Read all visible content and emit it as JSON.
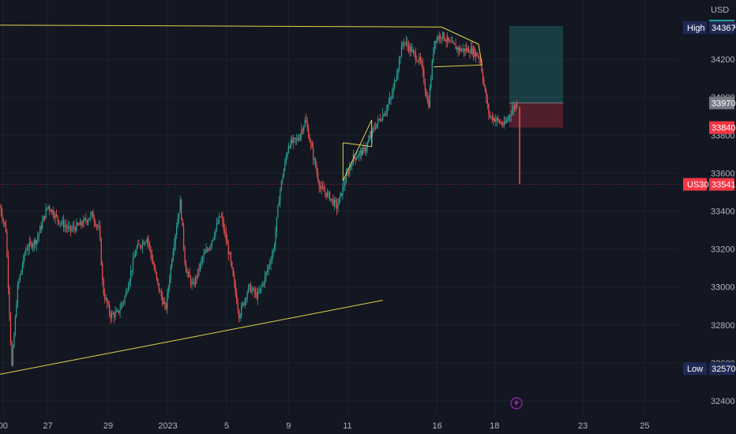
{
  "chart_data": {
    "type": "candlestick",
    "symbol": "US30",
    "currency": "USD",
    "x_ticks": [
      "00",
      "27",
      "29",
      "2023",
      "5",
      "9",
      "11",
      "16",
      "18",
      "23",
      "25"
    ],
    "y_ticks": [
      32400,
      32600,
      32800,
      33000,
      33200,
      33400,
      33600,
      33800,
      34000,
      34200
    ],
    "ylim": [
      32350,
      34450
    ],
    "grid": true,
    "price_tags": [
      {
        "label": "",
        "value": "34375",
        "price": 34375,
        "color": "#26a69a"
      },
      {
        "label": "High",
        "value": "34367",
        "price": 34367,
        "color": "#1e2a55"
      },
      {
        "label": "",
        "value": "33970",
        "price": 33970,
        "color": "#787b86"
      },
      {
        "label": "",
        "value": "33840",
        "price": 33840,
        "color": "#f23645"
      },
      {
        "label": "US30",
        "value": "33541",
        "price": 33541,
        "color": "#f23645"
      },
      {
        "label": "Low",
        "value": "32570",
        "price": 32570,
        "color": "#1e2a55"
      }
    ],
    "position": {
      "entry": 33970,
      "take_profit": 34375,
      "stop_loss": 33840
    },
    "trendlines": [
      {
        "p1": [
          0,
          34380
        ],
        "p2": [
          0.6,
          34370
        ]
      },
      {
        "p1": [
          0,
          32540
        ],
        "p2": [
          0.52,
          32930
        ]
      }
    ],
    "price_path": [
      [
        0.0,
        33420
      ],
      [
        0.008,
        33300
      ],
      [
        0.016,
        32580
      ],
      [
        0.024,
        33000
      ],
      [
        0.035,
        33200
      ],
      [
        0.05,
        33250
      ],
      [
        0.065,
        33430
      ],
      [
        0.08,
        33350
      ],
      [
        0.095,
        33300
      ],
      [
        0.11,
        33330
      ],
      [
        0.125,
        33380
      ],
      [
        0.135,
        33300
      ],
      [
        0.14,
        32980
      ],
      [
        0.15,
        32850
      ],
      [
        0.16,
        32860
      ],
      [
        0.17,
        32950
      ],
      [
        0.185,
        33200
      ],
      [
        0.2,
        33260
      ],
      [
        0.215,
        33000
      ],
      [
        0.225,
        32880
      ],
      [
        0.235,
        33200
      ],
      [
        0.245,
        33450
      ],
      [
        0.252,
        33100
      ],
      [
        0.262,
        33000
      ],
      [
        0.275,
        33150
      ],
      [
        0.285,
        33220
      ],
      [
        0.3,
        33380
      ],
      [
        0.312,
        33160
      ],
      [
        0.325,
        32850
      ],
      [
        0.338,
        33000
      ],
      [
        0.35,
        32950
      ],
      [
        0.36,
        33050
      ],
      [
        0.372,
        33200
      ],
      [
        0.38,
        33500
      ],
      [
        0.392,
        33750
      ],
      [
        0.405,
        33780
      ],
      [
        0.415,
        33880
      ],
      [
        0.425,
        33700
      ],
      [
        0.435,
        33520
      ],
      [
        0.447,
        33480
      ],
      [
        0.458,
        33420
      ],
      [
        0.468,
        33550
      ],
      [
        0.48,
        33680
      ],
      [
        0.495,
        33720
      ],
      [
        0.51,
        33850
      ],
      [
        0.522,
        33920
      ],
      [
        0.532,
        34000
      ],
      [
        0.54,
        34150
      ],
      [
        0.548,
        34300
      ],
      [
        0.558,
        34250
      ],
      [
        0.572,
        34180
      ],
      [
        0.582,
        33950
      ],
      [
        0.59,
        34300
      ],
      [
        0.6,
        34330
      ],
      [
        0.612,
        34280
      ],
      [
        0.625,
        34250
      ],
      [
        0.64,
        34250
      ],
      [
        0.652,
        34210
      ],
      [
        0.66,
        34000
      ],
      [
        0.665,
        33900
      ],
      [
        0.675,
        33880
      ],
      [
        0.685,
        33850
      ],
      [
        0.695,
        33930
      ],
      [
        0.703,
        33970
      ],
      [
        0.706,
        33541
      ]
    ]
  }
}
